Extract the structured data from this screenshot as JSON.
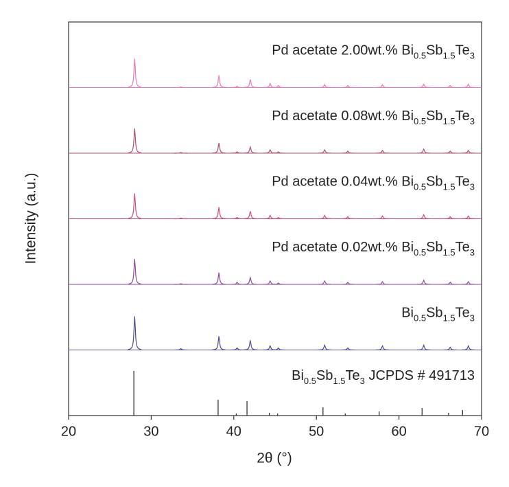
{
  "chart_data": {
    "type": "xrd",
    "xlabel": "2θ (°)",
    "ylabel": "Intensity (a.u.)",
    "xlim": [
      20,
      70
    ],
    "xticks": [
      20,
      30,
      40,
      50,
      60,
      70
    ],
    "series": [
      {
        "name": "Pd acetate 2.00wt.% Bi0.5Sb1.5Te3",
        "color": "#e67ab8",
        "style": "profile",
        "x": [
          28.0,
          33.6,
          38.2,
          40.4,
          42.0,
          44.4,
          45.4,
          51.0,
          53.8,
          58.0,
          63.0,
          66.2,
          68.4
        ],
        "values": [
          42,
          1,
          18,
          2,
          12,
          6,
          3,
          4,
          3,
          4,
          5,
          3,
          5
        ]
      },
      {
        "name": "Pd acetate 0.08wt.% Bi0.5Sb1.5Te3",
        "color": "#a8506e",
        "style": "profile",
        "x": [
          28.0,
          33.6,
          38.2,
          40.4,
          42.0,
          44.4,
          45.4,
          51.0,
          53.8,
          58.0,
          63.0,
          66.2,
          68.4
        ],
        "values": [
          36,
          1,
          15,
          2,
          9,
          5,
          2,
          5,
          3,
          4,
          6,
          3,
          4
        ]
      },
      {
        "name": "Pd acetate 0.04wt.% Bi0.5Sb1.5Te3",
        "color": "#d04a78",
        "style": "profile",
        "x": [
          28.0,
          33.6,
          38.2,
          40.4,
          42.0,
          44.4,
          45.4,
          51.0,
          53.8,
          58.0,
          63.0,
          66.2,
          68.4
        ],
        "values": [
          37,
          1,
          17,
          2,
          11,
          5,
          2,
          5,
          3,
          4,
          6,
          3,
          4
        ]
      },
      {
        "name": "Pd acetate 0.02wt.% Bi0.5Sb1.5Te3",
        "color": "#8a4a9a",
        "style": "profile",
        "x": [
          28.0,
          33.6,
          38.2,
          40.4,
          42.0,
          44.4,
          45.4,
          51.0,
          53.8,
          58.0,
          63.0,
          66.2,
          68.4
        ],
        "values": [
          37,
          1,
          17,
          3,
          10,
          5,
          2,
          5,
          3,
          4,
          6,
          3,
          4
        ]
      },
      {
        "name": "Bi0.5Sb1.5Te3",
        "color": "#4a4a8e",
        "style": "profile",
        "x": [
          28.0,
          33.6,
          38.2,
          40.4,
          42.0,
          44.4,
          45.4,
          51.0,
          53.8,
          58.0,
          63.0,
          66.2,
          68.4
        ],
        "values": [
          49,
          2,
          20,
          3,
          14,
          6,
          3,
          7,
          3,
          6,
          7,
          4,
          6
        ]
      },
      {
        "name": "Bi0.5Sb1.5Te3 JCPDS # 491713",
        "color": "#333333",
        "style": "stick",
        "x": [
          27.9,
          38.1,
          40.3,
          41.6,
          44.3,
          45.3,
          50.8,
          53.5,
          57.6,
          62.8,
          66.0,
          67.7
        ],
        "values": [
          65,
          23,
          3,
          21,
          4,
          3,
          12,
          3,
          6,
          11,
          4,
          8
        ]
      }
    ]
  }
}
